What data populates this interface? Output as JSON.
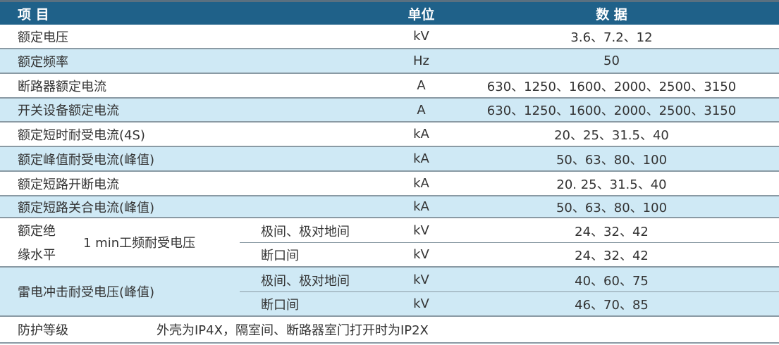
{
  "header": {
    "item": "项 目",
    "unit": "单位",
    "data": "数  据"
  },
  "rows": [
    {
      "item": "额定电压",
      "unit": "kV",
      "value": "3.6、7.2、12"
    },
    {
      "item": "额定频率",
      "unit": "Hz",
      "value": "50"
    },
    {
      "item": "断路器额定电流",
      "unit": "A",
      "value": "630、1250、1600、2000、2500、3150"
    },
    {
      "item": "开关设备额定电流",
      "unit": "A",
      "value": "630、1250、1600、2000、2500、3150"
    },
    {
      "item": "额定短时耐受电流(4S)",
      "unit": "kA",
      "value": "20、25、31.5、40"
    },
    {
      "item": "额定峰值耐受电流(峰值)",
      "unit": "kA",
      "value": "50、63、80、100"
    },
    {
      "item": "额定短路开断电流",
      "unit": "kA",
      "value": "20. 25、31.5、40"
    },
    {
      "item": "额定短路关合电流(峰值)",
      "unit": "kA",
      "value": "50、63、80、100"
    }
  ],
  "insulation": {
    "label_line1": "额定绝",
    "label_line2": "缘水平",
    "test": "1 min工频耐受电压",
    "subrows": [
      {
        "item": "极间、极对地间",
        "unit": "kV",
        "value": "24、32、42"
      },
      {
        "item": "断口间",
        "unit": "kV",
        "value": "24、32、42"
      }
    ]
  },
  "lightning": {
    "label": "雷电冲击耐受电压(峰值)",
    "subrows": [
      {
        "item": "极间、极对地间",
        "unit": "kV",
        "value": "40、60、75"
      },
      {
        "item": "断口间",
        "unit": "kV",
        "value": "46、70、85"
      }
    ]
  },
  "protection": {
    "label": "防护等级",
    "value": "外壳为IP4X，隔室间、断路器室门打开时为IP2X"
  }
}
